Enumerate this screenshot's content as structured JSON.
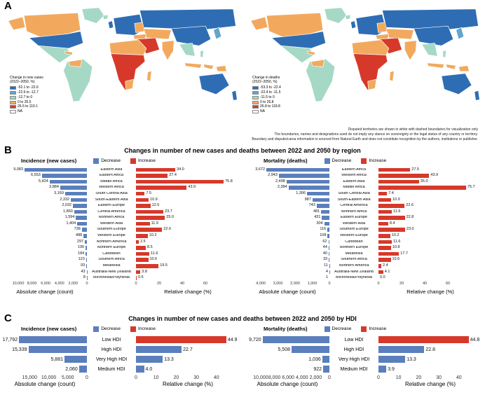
{
  "colors": {
    "decrease": "#5b7fbc",
    "increase": "#d6392a",
    "map_dark_blue": "#2e6db4",
    "map_mid_blue": "#64a5cc",
    "map_teal": "#a5d9c5",
    "map_orange": "#f2a95e",
    "map_red": "#d6392a",
    "map_na": "#ffffff"
  },
  "panelA": {
    "label": "A",
    "maps": [
      {
        "name": "Change in new cases",
        "legend_title_line1": "Change in new cases",
        "legend_title_line2": "(2022–2050, %)",
        "bins": [
          {
            "label": "-52.1 to -22.6",
            "color": "#2e6db4"
          },
          {
            "label": "-22.6 to -12.7",
            "color": "#64a5cc"
          },
          {
            "label": "-12.7 to 0",
            "color": "#a5d9c5"
          },
          {
            "label": "0 to 26.5",
            "color": "#f2a95e"
          },
          {
            "label": "26.5 to 119.1",
            "color": "#d6392a"
          },
          {
            "label": "NA",
            "color": "#ffffff"
          }
        ]
      },
      {
        "name": "Change in deaths",
        "legend_title_line1": "Change in deaths",
        "legend_title_line2": "(2022–2050, %)",
        "bins": [
          {
            "label": "-53.3 to -22.4",
            "color": "#2e6db4"
          },
          {
            "label": "-22.4 to -11.5",
            "color": "#64a5cc"
          },
          {
            "label": "-11.5 to 0",
            "color": "#a5d9c5"
          },
          {
            "label": "0 to 26.8",
            "color": "#f2a95e"
          },
          {
            "label": "26.8 to 118.8",
            "color": "#d6392a"
          },
          {
            "label": "NA",
            "color": "#ffffff"
          }
        ]
      }
    ],
    "caption_lines": [
      "Disputed territories are shown in white with dashed boundaries for visualization only",
      "The boundaries, names and designations used do not imply any stance on sovereignty or the legal status of any country or territory.",
      "Boundary and disputed-area information is sourced from Natural Earth and does not constitute recognition by the authors, institutions or publisher."
    ]
  },
  "panelB": {
    "label": "B",
    "title": "Changes in number of new cases and deaths between 2022 and 2050 by region"
  },
  "panelC": {
    "label": "C",
    "title": "Changes in number of new cases and deaths between 2022 and 2050 by HDI"
  },
  "chart_data": [
    {
      "id": "region_incidence",
      "type": "bar",
      "title": "Incidence (new cases)",
      "legend": [
        {
          "label": "Decrease",
          "color_key": "decrease"
        },
        {
          "label": "Increase",
          "color_key": "increase"
        }
      ],
      "categories": [
        "Eastern Asia",
        "Eastern Africa",
        "Middle Africa",
        "Western Africa",
        "South Central Asia",
        "South-Eastern Asia",
        "Eastern Europe",
        "Central America",
        "Northern Africa",
        "Western Asia",
        "Southern Europe",
        "Western Europe",
        "Northern America",
        "Northern Europe",
        "Caribbean",
        "Southern Africa",
        "Melanesia",
        "Australia-New Zealand",
        "Micronesia/Polynesia"
      ],
      "series": [
        {
          "name": "Absolute change (count)",
          "color_key": "decrease",
          "values": [
            9083,
            6553,
            5424,
            3884,
            3169,
            2332,
            2032,
            1860,
            1594,
            1404,
            738,
            488,
            297,
            190,
            184,
            123,
            93,
            43,
            8
          ],
          "labels": [
            "9,083",
            "6,553",
            "5,424",
            "3,884",
            "3,169",
            "2,332",
            "2,032",
            "1,860",
            "1,594",
            "1,404",
            "738",
            "488",
            "297",
            "190",
            "184",
            "123",
            "93",
            "43",
            "8"
          ]
        },
        {
          "name": "Relative change (%)",
          "values": [
            34.0,
            27.4,
            75.8,
            43.9,
            7.5,
            10.9,
            12.5,
            23.7,
            25.0,
            11.9,
            22.6,
            10.2,
            2.5,
            8.5,
            11.6,
            10.6,
            19.5,
            3.8,
            0.6
          ],
          "labels": [
            "34.0",
            "27.4",
            "75.8",
            "43.9",
            "7.5",
            "10.9",
            "12.5",
            "23.7",
            "25.0",
            "11.9",
            "22.6",
            "10.2",
            "2.5",
            "8.5",
            "11.6",
            "10.6",
            "19.5",
            "3.8",
            "0.6"
          ],
          "color_keys": [
            "increase",
            "increase",
            "increase",
            "increase",
            "increase",
            "increase",
            "increase",
            "increase",
            "increase",
            "increase",
            "increase",
            "increase",
            "increase",
            "increase",
            "increase",
            "increase",
            "increase",
            "increase",
            "increase"
          ]
        }
      ],
      "axes": {
        "abs": {
          "title": "Absolute change (count)",
          "max": 10000,
          "ticks": [
            {
              "v": 10000,
              "label": "10,000"
            },
            {
              "v": 8000,
              "label": "8,000"
            },
            {
              "v": 6000,
              "label": "6,000"
            },
            {
              "v": 4000,
              "label": "4,000"
            },
            {
              "v": 2000,
              "label": "2,000"
            },
            {
              "v": 0,
              "label": "0"
            }
          ]
        },
        "rel": {
          "title": "Relative change (%)",
          "max": 80,
          "ticks": [
            {
              "v": 0,
              "label": "0"
            },
            {
              "v": 20,
              "label": "20"
            },
            {
              "v": 40,
              "label": "40"
            },
            {
              "v": 60,
              "label": "60"
            }
          ]
        }
      }
    },
    {
      "id": "region_mortality",
      "type": "bar",
      "title": "Mortality (deaths)",
      "legend": [
        {
          "label": "Decrease",
          "color_key": "decrease"
        },
        {
          "label": "Increase",
          "color_key": "increase"
        }
      ],
      "categories": [
        "Eastern Africa",
        "Western Africa",
        "Eastern Asia",
        "Middle Africa",
        "South Central Asia",
        "South-Eastern Asia",
        "Central America",
        "Northern Africa",
        "Eastern Europe",
        "Western Asia",
        "Southern Europe",
        "Western Europe",
        "Caribbean",
        "Northern Europe",
        "Melanesia",
        "Southern Africa",
        "Northern America",
        "Australia-New Zealand",
        "Micronesia/Polynesia"
      ],
      "series": [
        {
          "name": "Absolute change (count)",
          "color_key": "decrease",
          "values": [
            3672,
            2943,
            2498,
            2384,
            1306,
            987,
            743,
            481,
            431,
            304,
            116,
            108,
            62,
            44,
            40,
            33,
            11,
            4,
            1
          ],
          "labels": [
            "3,672",
            "2,943",
            "2,498",
            "2,384",
            "1,306",
            "987",
            "743",
            "481",
            "431",
            "304",
            "116",
            "108",
            "62",
            "44",
            "40",
            "33",
            "11",
            "4",
            "1"
          ]
        },
        {
          "name": "Relative change (%)",
          "values": [
            27.5,
            43.9,
            35.0,
            75.7,
            7.4,
            10.9,
            22.6,
            11.6,
            22.8,
            8.4,
            23.0,
            10.2,
            11.6,
            10.8,
            17.7,
            10.6,
            2.4,
            4.1,
            0.0
          ],
          "labels": [
            "27.5",
            "43.9",
            "35.0",
            "75.7",
            "7.4",
            "10.9",
            "22.6",
            "11.6",
            "22.8",
            "8.4",
            "23.0",
            "10.2",
            "11.6",
            "10.8",
            "17.7",
            "10.6",
            "2.4",
            "4.1",
            "0.0"
          ],
          "color_keys": [
            "increase",
            "increase",
            "increase",
            "increase",
            "increase",
            "increase",
            "increase",
            "increase",
            "increase",
            "increase",
            "increase",
            "increase",
            "increase",
            "increase",
            "increase",
            "increase",
            "increase",
            "increase",
            "increase"
          ]
        }
      ],
      "axes": {
        "abs": {
          "title": "Absolute change (count)",
          "max": 4000,
          "ticks": [
            {
              "v": 4000,
              "label": "4,000"
            },
            {
              "v": 3000,
              "label": "3,000"
            },
            {
              "v": 2000,
              "label": "2,000"
            },
            {
              "v": 1000,
              "label": "1,000"
            },
            {
              "v": 0,
              "label": "0"
            }
          ]
        },
        "rel": {
          "title": "Relative change (%)",
          "max": 80,
          "ticks": [
            {
              "v": 0,
              "label": "0"
            },
            {
              "v": 20,
              "label": "20"
            },
            {
              "v": 40,
              "label": "40"
            },
            {
              "v": 60,
              "label": "60"
            }
          ]
        }
      }
    },
    {
      "id": "hdi_incidence",
      "type": "bar",
      "title": "Incidence (new cases)",
      "legend": [
        {
          "label": "Decrease",
          "color_key": "decrease"
        },
        {
          "label": "Increase",
          "color_key": "increase"
        }
      ],
      "categories": [
        "Low HDI",
        "High HDI",
        "Very High HDI",
        "Medium HDI"
      ],
      "series": [
        {
          "name": "Absolute change (count)",
          "color_key": "decrease",
          "values": [
            17792,
            15339,
            5881,
            2060
          ],
          "labels": [
            "17,792",
            "15,339",
            "5,881",
            "2,060"
          ]
        },
        {
          "name": "Relative change (%)",
          "values": [
            44.9,
            22.7,
            13.3,
            4.0
          ],
          "labels": [
            "44.9",
            "22.7",
            "13.3",
            "4.0"
          ],
          "color_keys": [
            "increase",
            "decrease",
            "decrease",
            "decrease"
          ]
        }
      ],
      "axes": {
        "abs": {
          "title": "Absolute change (count)",
          "max": 18000,
          "ticks": [
            {
              "v": 15000,
              "label": "15,000"
            },
            {
              "v": 10000,
              "label": "10,000"
            },
            {
              "v": 5000,
              "label": "5,000"
            },
            {
              "v": 0,
              "label": "0"
            }
          ]
        },
        "rel": {
          "title": "Relative change (%)",
          "max": 46,
          "ticks": [
            {
              "v": 0,
              "label": "0"
            },
            {
              "v": 10,
              "label": "10"
            },
            {
              "v": 20,
              "label": "20"
            },
            {
              "v": 30,
              "label": "30"
            },
            {
              "v": 40,
              "label": "40"
            }
          ]
        }
      }
    },
    {
      "id": "hdi_mortality",
      "type": "bar",
      "title": "Mortality (deaths)",
      "legend": [
        {
          "label": "Decrease",
          "color_key": "decrease"
        },
        {
          "label": "Increase",
          "color_key": "increase"
        }
      ],
      "categories": [
        "Low HDI",
        "High HDI",
        "Very High HDI",
        "Medium HDI"
      ],
      "series": [
        {
          "name": "Absolute change (count)",
          "color_key": "decrease",
          "values": [
            9720,
            5508,
            1036,
            922
          ],
          "labels": [
            "9,720",
            "5,508",
            "1,036",
            "922"
          ]
        },
        {
          "name": "Relative change (%)",
          "values": [
            44.8,
            22.8,
            13.3,
            3.9
          ],
          "labels": [
            "44.8",
            "22.8",
            "13.3",
            "3.9"
          ],
          "color_keys": [
            "increase",
            "decrease",
            "decrease",
            "decrease"
          ]
        }
      ],
      "axes": {
        "abs": {
          "title": "Absolute change (count)",
          "max": 10000,
          "ticks": [
            {
              "v": 10000,
              "label": "10,000"
            },
            {
              "v": 8000,
              "label": "8,000"
            },
            {
              "v": 6000,
              "label": "6,000"
            },
            {
              "v": 4000,
              "label": "4,000"
            },
            {
              "v": 2000,
              "label": "2,000"
            },
            {
              "v": 0,
              "label": "0"
            }
          ]
        },
        "rel": {
          "title": "Relative change (%)",
          "max": 46,
          "ticks": [
            {
              "v": 0,
              "label": "0"
            },
            {
              "v": 10,
              "label": "10"
            },
            {
              "v": 20,
              "label": "20"
            },
            {
              "v": 30,
              "label": "30"
            },
            {
              "v": 40,
              "label": "40"
            }
          ]
        }
      }
    }
  ]
}
